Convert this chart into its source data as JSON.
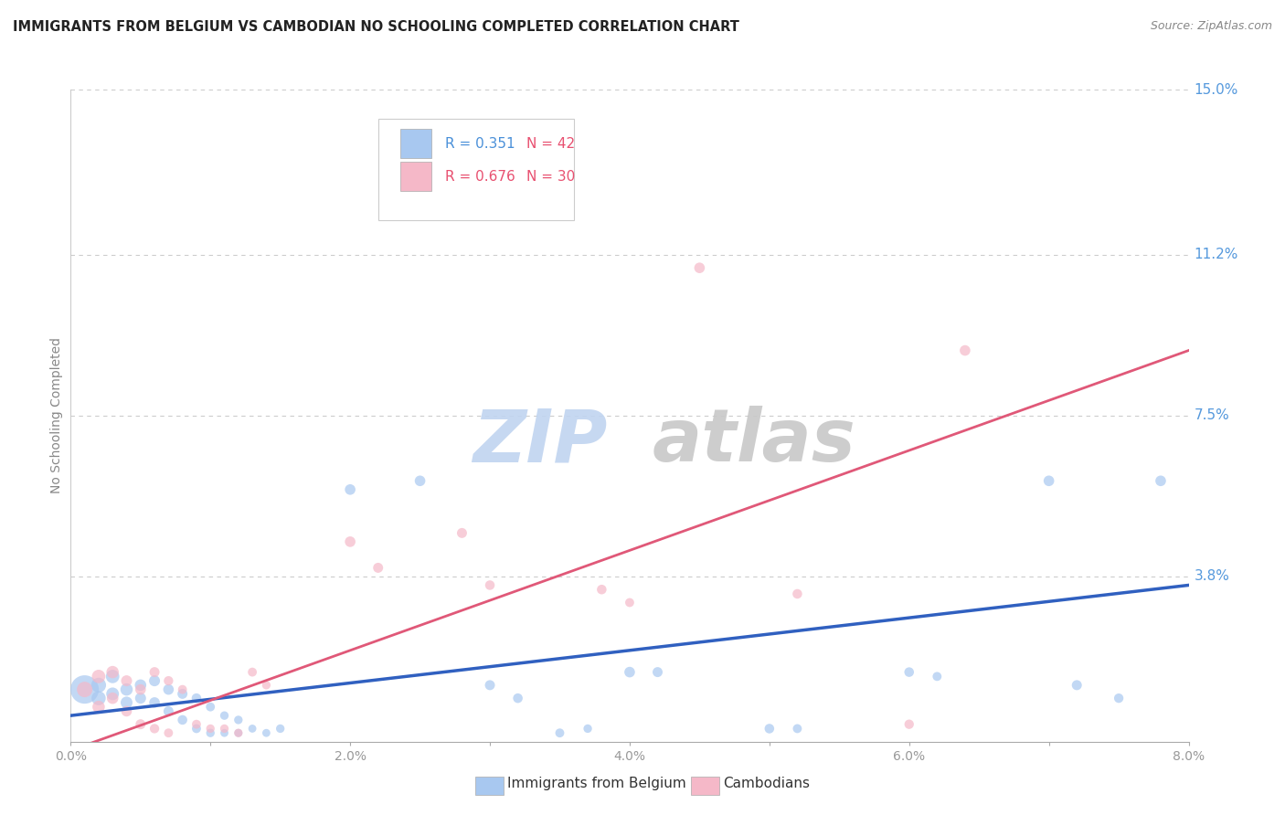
{
  "title": "IMMIGRANTS FROM BELGIUM VS CAMBODIAN NO SCHOOLING COMPLETED CORRELATION CHART",
  "source": "Source: ZipAtlas.com",
  "ylabel": "No Schooling Completed",
  "xlim": [
    0.0,
    0.08
  ],
  "ylim": [
    0.0,
    0.15
  ],
  "xtick_labels": [
    "0.0%",
    "",
    "2.0%",
    "",
    "4.0%",
    "",
    "6.0%",
    "",
    "8.0%"
  ],
  "xtick_vals": [
    0.0,
    0.01,
    0.02,
    0.03,
    0.04,
    0.05,
    0.06,
    0.07,
    0.08
  ],
  "ytick_labels": [
    "15.0%",
    "11.2%",
    "7.5%",
    "3.8%"
  ],
  "ytick_vals": [
    0.15,
    0.112,
    0.075,
    0.038
  ],
  "legend1_r": "R = 0.351",
  "legend1_n": "N = 42",
  "legend2_r": "R = 0.676",
  "legend2_n": "N = 30",
  "legend_label1": "Immigrants from Belgium",
  "legend_label2": "Cambodians",
  "blue_color": "#A8C8F0",
  "pink_color": "#F5B8C8",
  "blue_line_color": "#3060C0",
  "pink_line_color": "#E05878",
  "r_color_blue": "#4A90D9",
  "r_color_pink": "#E85070",
  "n_color": "#E85070",
  "grid_color": "#CCCCCC",
  "watermark": "ZIPatlas",
  "watermark_color_zip": "#C8D8F0",
  "watermark_color_atlas": "#C8C8C8",
  "blue_points": [
    [
      0.001,
      0.012,
      200
    ],
    [
      0.002,
      0.013,
      55
    ],
    [
      0.002,
      0.01,
      50
    ],
    [
      0.003,
      0.015,
      45
    ],
    [
      0.003,
      0.011,
      40
    ],
    [
      0.004,
      0.012,
      38
    ],
    [
      0.004,
      0.009,
      35
    ],
    [
      0.005,
      0.013,
      33
    ],
    [
      0.005,
      0.01,
      30
    ],
    [
      0.006,
      0.014,
      30
    ],
    [
      0.006,
      0.009,
      28
    ],
    [
      0.007,
      0.012,
      28
    ],
    [
      0.007,
      0.007,
      25
    ],
    [
      0.008,
      0.011,
      25
    ],
    [
      0.008,
      0.005,
      23
    ],
    [
      0.009,
      0.01,
      23
    ],
    [
      0.009,
      0.003,
      20
    ],
    [
      0.01,
      0.008,
      20
    ],
    [
      0.01,
      0.002,
      18
    ],
    [
      0.011,
      0.006,
      18
    ],
    [
      0.011,
      0.002,
      16
    ],
    [
      0.012,
      0.005,
      18
    ],
    [
      0.012,
      0.002,
      16
    ],
    [
      0.013,
      0.003,
      16
    ],
    [
      0.014,
      0.002,
      16
    ],
    [
      0.015,
      0.003,
      18
    ],
    [
      0.02,
      0.058,
      28
    ],
    [
      0.025,
      0.06,
      28
    ],
    [
      0.03,
      0.013,
      25
    ],
    [
      0.032,
      0.01,
      23
    ],
    [
      0.035,
      0.002,
      20
    ],
    [
      0.037,
      0.003,
      18
    ],
    [
      0.04,
      0.016,
      28
    ],
    [
      0.042,
      0.016,
      25
    ],
    [
      0.05,
      0.003,
      23
    ],
    [
      0.052,
      0.003,
      20
    ],
    [
      0.06,
      0.016,
      23
    ],
    [
      0.062,
      0.015,
      20
    ],
    [
      0.07,
      0.06,
      28
    ],
    [
      0.072,
      0.013,
      25
    ],
    [
      0.075,
      0.01,
      22
    ],
    [
      0.078,
      0.06,
      28
    ]
  ],
  "pink_points": [
    [
      0.001,
      0.012,
      60
    ],
    [
      0.002,
      0.015,
      45
    ],
    [
      0.002,
      0.008,
      38
    ],
    [
      0.003,
      0.016,
      38
    ],
    [
      0.003,
      0.01,
      33
    ],
    [
      0.004,
      0.014,
      30
    ],
    [
      0.004,
      0.007,
      28
    ],
    [
      0.005,
      0.012,
      28
    ],
    [
      0.005,
      0.004,
      25
    ],
    [
      0.006,
      0.016,
      25
    ],
    [
      0.006,
      0.003,
      22
    ],
    [
      0.007,
      0.014,
      22
    ],
    [
      0.007,
      0.002,
      20
    ],
    [
      0.008,
      0.012,
      20
    ],
    [
      0.009,
      0.004,
      20
    ],
    [
      0.01,
      0.003,
      18
    ],
    [
      0.011,
      0.003,
      18
    ],
    [
      0.012,
      0.002,
      18
    ],
    [
      0.013,
      0.016,
      20
    ],
    [
      0.014,
      0.013,
      18
    ],
    [
      0.02,
      0.046,
      28
    ],
    [
      0.022,
      0.04,
      25
    ],
    [
      0.028,
      0.048,
      25
    ],
    [
      0.03,
      0.036,
      23
    ],
    [
      0.038,
      0.035,
      23
    ],
    [
      0.04,
      0.032,
      20
    ],
    [
      0.045,
      0.109,
      28
    ],
    [
      0.052,
      0.034,
      23
    ],
    [
      0.06,
      0.004,
      22
    ],
    [
      0.064,
      0.09,
      28
    ]
  ],
  "blue_line": {
    "x0": 0.0,
    "y0": 0.006,
    "x1": 0.08,
    "y1": 0.036
  },
  "pink_line": {
    "x0": 0.0,
    "y0": -0.002,
    "x1": 0.08,
    "y1": 0.09
  }
}
